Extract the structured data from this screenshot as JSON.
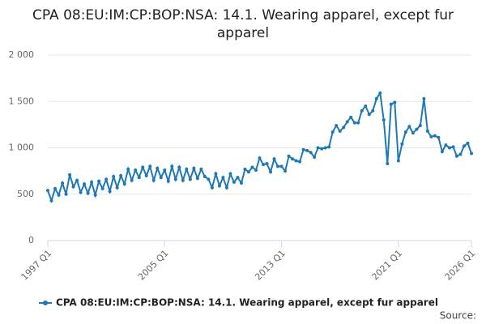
{
  "chart_data": {
    "type": "line",
    "title": "CPA 08:EU:IM:CP:BOP:NSA: 14.1. Wearing apparel, except fur apparel",
    "source": "Source:",
    "categories": [
      "1997 Q1",
      null,
      null,
      null,
      null,
      null,
      null,
      null,
      null,
      null,
      null,
      null,
      null,
      null,
      null,
      null,
      null,
      null,
      null,
      null,
      null,
      null,
      null,
      null,
      null,
      null,
      null,
      null,
      null,
      null,
      null,
      null,
      "2005 Q1",
      null,
      null,
      null,
      null,
      null,
      null,
      null,
      null,
      null,
      null,
      null,
      null,
      null,
      null,
      null,
      null,
      null,
      null,
      null,
      null,
      null,
      null,
      null,
      null,
      null,
      null,
      null,
      null,
      null,
      null,
      null,
      "2013 Q1",
      null,
      null,
      null,
      null,
      null,
      null,
      null,
      null,
      null,
      null,
      null,
      null,
      null,
      null,
      null,
      null,
      null,
      null,
      null,
      null,
      null,
      null,
      null,
      null,
      null,
      null,
      null,
      null,
      null,
      null,
      null,
      "2021 Q1",
      null,
      null,
      null,
      null,
      null,
      null,
      null,
      null,
      null,
      null,
      null,
      null,
      null,
      null,
      null,
      null,
      null,
      null,
      null,
      "2026 Q1"
    ],
    "series": [
      {
        "name": "CPA 08:EU:IM:CP:BOP:NSA: 14.1. Wearing apparel, except fur apparel",
        "color": "#1f78b4",
        "values": [
          540,
          430,
          560,
          490,
          620,
          500,
          710,
          580,
          650,
          520,
          610,
          510,
          630,
          490,
          640,
          560,
          660,
          530,
          690,
          570,
          700,
          610,
          770,
          650,
          760,
          680,
          790,
          700,
          800,
          650,
          780,
          680,
          760,
          640,
          800,
          660,
          790,
          650,
          770,
          660,
          780,
          670,
          770,
          690,
          660,
          570,
          720,
          590,
          680,
          570,
          720,
          630,
          680,
          620,
          770,
          740,
          790,
          760,
          890,
          820,
          830,
          740,
          880,
          800,
          800,
          750,
          910,
          880,
          860,
          850,
          980,
          970,
          950,
          900,
          1000,
          990,
          1000,
          1010,
          1170,
          1240,
          1180,
          1220,
          1280,
          1330,
          1270,
          1270,
          1400,
          1450,
          1360,
          1400,
          1530,
          1590,
          1300,
          830,
          1470,
          1490,
          860,
          1040,
          1170,
          1230,
          1160,
          1200,
          1240,
          1530,
          1180,
          1120,
          1130,
          1110,
          960,
          1030,
          1000,
          1010,
          910,
          930,
          1020,
          1050,
          940
        ]
      }
    ],
    "ylim": [
      0,
      2000
    ],
    "yticks": [
      0,
      500,
      {
        "value": 1000,
        "label": "1 000"
      },
      {
        "value": 1500,
        "label": "1 500"
      },
      {
        "value": 2000,
        "label": "2 000"
      }
    ],
    "grid": true
  }
}
